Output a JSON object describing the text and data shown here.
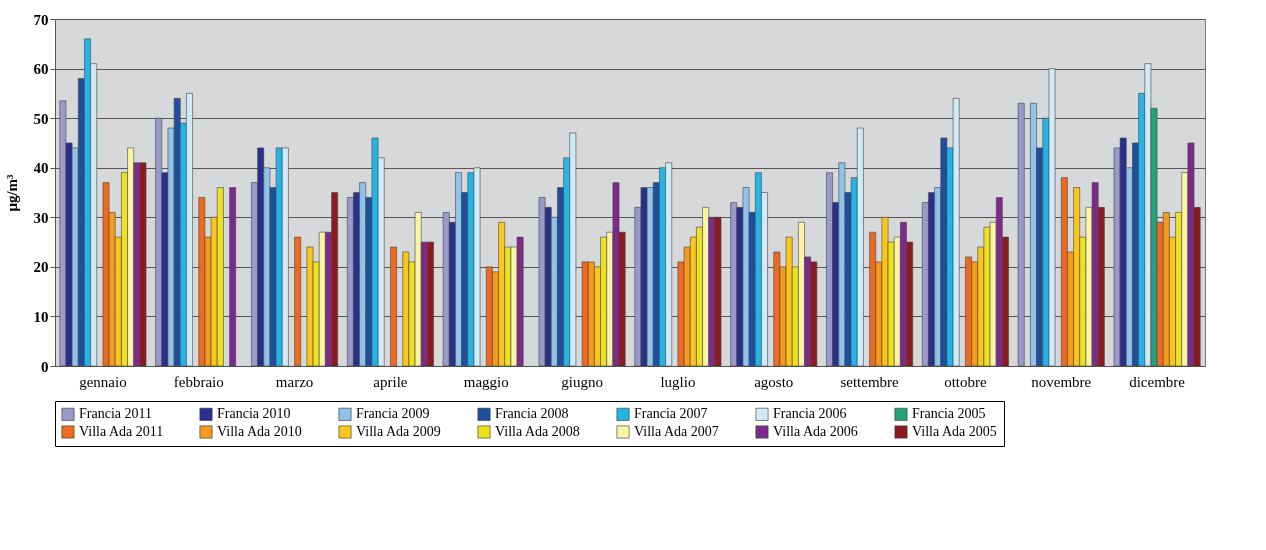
{
  "chart_data": {
    "type": "bar",
    "ylabel": "μg/m³",
    "categories": [
      "gennaio",
      "febbraio",
      "marzo",
      "aprile",
      "maggio",
      "giugno",
      "luglio",
      "agosto",
      "settembre",
      "ottobre",
      "novembre",
      "dicembre"
    ],
    "ylim": [
      0,
      70
    ],
    "yticks": [
      0,
      10,
      20,
      30,
      40,
      50,
      60,
      70
    ],
    "grid": "y",
    "legend": "bottom",
    "series": [
      {
        "name": "Francia 2011",
        "color": "#9999cc",
        "values": [
          53.5,
          50,
          37,
          34,
          31,
          34,
          32,
          33,
          39,
          33,
          53,
          44
        ]
      },
      {
        "name": "Francia 2010",
        "color": "#2b2f8c",
        "values": [
          45,
          39,
          44,
          35,
          29,
          32,
          36,
          32,
          33,
          35,
          null,
          46
        ]
      },
      {
        "name": "Francia 2009",
        "color": "#8ec3ea",
        "values": [
          44,
          48,
          40,
          37,
          39,
          30,
          36,
          36,
          41,
          36,
          53,
          40
        ]
      },
      {
        "name": "Francia 2008",
        "color": "#1d4f9e",
        "values": [
          58,
          54,
          36,
          34,
          35,
          36,
          37,
          31,
          35,
          46,
          44,
          45
        ]
      },
      {
        "name": "Francia 2007",
        "color": "#22b5e8",
        "values": [
          66,
          49,
          44,
          46,
          39,
          42,
          40,
          39,
          38,
          44,
          50,
          55
        ]
      },
      {
        "name": "Francia 2006",
        "color": "#cfe9f5",
        "values": [
          61,
          55,
          44,
          42,
          40,
          47,
          41,
          35,
          48,
          54,
          60,
          61
        ]
      },
      {
        "name": "Francia 2005",
        "color": "#24a27a",
        "values": [
          null,
          null,
          null,
          null,
          null,
          null,
          null,
          null,
          null,
          null,
          null,
          52
        ]
      },
      {
        "name": "Villa Ada 2011",
        "color": "#ef6a1e",
        "values": [
          37,
          34,
          26,
          24,
          20,
          21,
          21,
          23,
          27,
          22,
          38,
          29
        ]
      },
      {
        "name": "Villa Ada 2010",
        "color": "#f39a1f",
        "values": [
          31,
          26,
          null,
          null,
          19,
          21,
          24,
          20,
          21,
          21,
          23,
          31
        ]
      },
      {
        "name": "Villa Ada 2009",
        "color": "#fcc51a",
        "values": [
          26,
          30,
          24,
          23,
          29,
          20,
          26,
          26,
          30,
          24,
          36,
          26
        ]
      },
      {
        "name": "Villa Ada 2008",
        "color": "#ede221",
        "values": [
          39,
          36,
          21,
          21,
          24,
          26,
          28,
          20,
          25,
          28,
          26,
          31
        ]
      },
      {
        "name": "Villa Ada 2007",
        "color": "#fbf4a6",
        "values": [
          44,
          null,
          27,
          31,
          24,
          27,
          32,
          29,
          26,
          29,
          32,
          39
        ]
      },
      {
        "name": "Villa Ada 2006",
        "color": "#7d2a8c",
        "values": [
          41,
          36,
          27,
          25,
          26,
          37,
          30,
          22,
          29,
          34,
          37,
          45
        ]
      },
      {
        "name": "Villa Ada 2005",
        "color": "#8c1a1e",
        "values": [
          41,
          null,
          35,
          25,
          null,
          27,
          30,
          21,
          25,
          26,
          32,
          32
        ]
      }
    ]
  }
}
